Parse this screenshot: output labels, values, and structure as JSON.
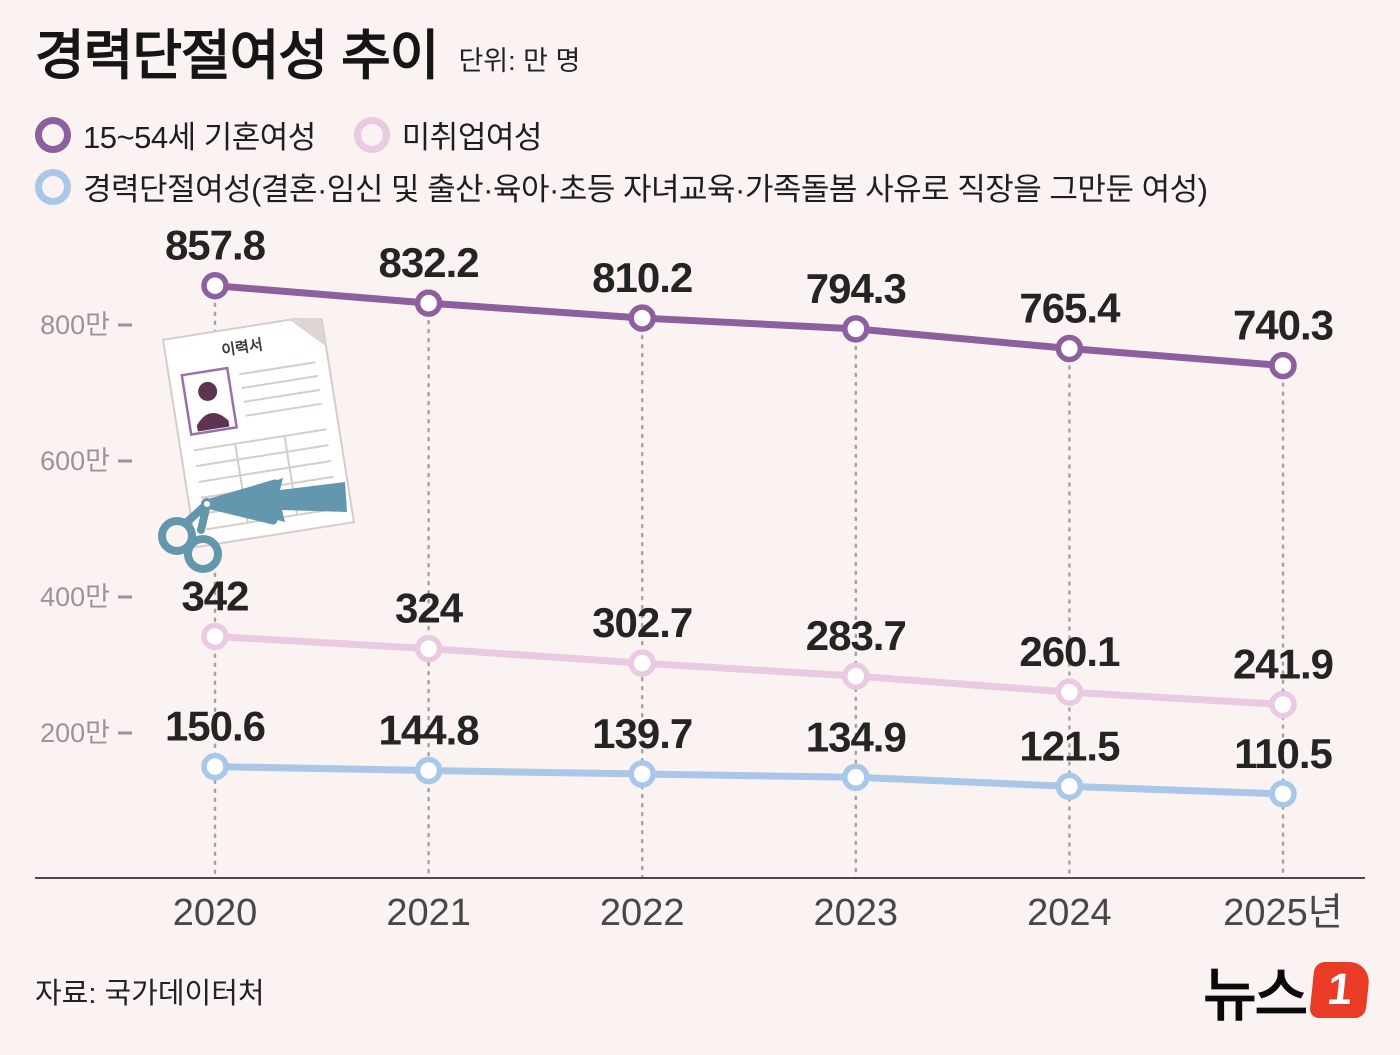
{
  "header": {
    "title": "경력단절여성 추이",
    "unit": "단위: 만 명"
  },
  "legend": {
    "items": [
      {
        "label": "15~54세 기혼여성"
      },
      {
        "label": "미취업여성"
      },
      {
        "label": "경력단절여성(결혼·임신 및 출산·육아·초등 자녀교육·가족돌봄 사유로 직장을 그만둔 여성)"
      }
    ]
  },
  "illustration": {
    "resume_label": "이력서"
  },
  "footer": {
    "source": "자료: 국가데이터처",
    "logo_text": "뉴스",
    "logo_mark": "1"
  },
  "colors": {
    "married": "#8d5f9e",
    "unemployed": "#eac9e2",
    "career_break": "#a9c7e8",
    "background": "#fbf3f2",
    "axis": "#4a4a4a",
    "grid": "#a8a2a2",
    "tick_label": "#9a9595",
    "data_label": "#242424",
    "year_label": "#474747",
    "logo_red": "#ea3b26",
    "illustration_teal": "#6397ad",
    "paper_line": "#d4cdca"
  },
  "chart_data": {
    "type": "line",
    "title": "경력단절여성 추이",
    "unit": "만 명",
    "categories": [
      "2020",
      "2021",
      "2022",
      "2023",
      "2024",
      "2025년"
    ],
    "series": [
      {
        "name": "15~54세 기혼여성",
        "color": "#8d5f9e",
        "values": [
          857.8,
          832.2,
          810.2,
          794.3,
          765.4,
          740.3
        ],
        "labels": [
          "857.8",
          "832.2",
          "810.2",
          "794.3",
          "765.4",
          "740.3"
        ]
      },
      {
        "name": "미취업여성",
        "color": "#eac9e2",
        "values": [
          342,
          324,
          302.7,
          283.7,
          260.1,
          241.9
        ],
        "labels": [
          "342",
          "324",
          "302.7",
          "283.7",
          "260.1",
          "241.9"
        ]
      },
      {
        "name": "경력단절여성",
        "color": "#a9c7e8",
        "values": [
          150.6,
          144.8,
          139.7,
          134.9,
          121.5,
          110.5
        ],
        "labels": [
          "150.6",
          "144.8",
          "139.7",
          "134.9",
          "121.5",
          "110.5"
        ]
      }
    ],
    "yticks": [
      {
        "value": 200,
        "label": "200만"
      },
      {
        "value": 400,
        "label": "400만"
      },
      {
        "value": 600,
        "label": "600만"
      },
      {
        "value": 800,
        "label": "800만"
      }
    ],
    "ylim": [
      0,
      950
    ],
    "grid": "dotted vertical line per category",
    "legend_position": "top-left"
  }
}
